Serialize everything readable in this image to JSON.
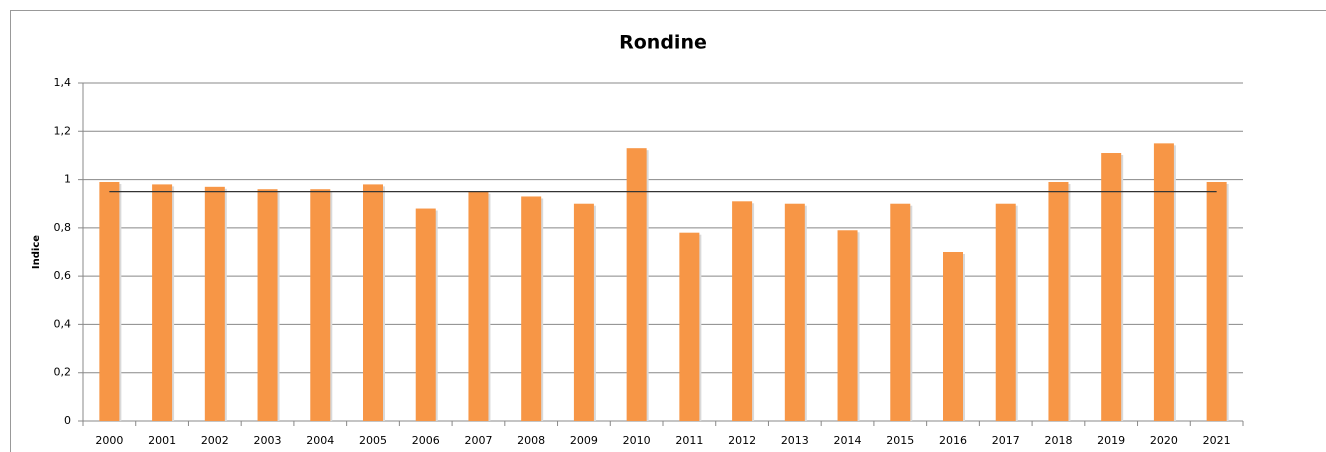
{
  "chart_data": {
    "type": "bar",
    "title": "Rondine",
    "y_label": "Indice",
    "categories": [
      "2000",
      "2001",
      "2002",
      "2003",
      "2004",
      "2005",
      "2006",
      "2007",
      "2008",
      "2009",
      "2010",
      "2011",
      "2012",
      "2013",
      "2014",
      "2015",
      "2016",
      "2017",
      "2018",
      "2019",
      "2020",
      "2021"
    ],
    "values": [
      0.99,
      0.98,
      0.97,
      0.96,
      0.96,
      0.98,
      0.88,
      0.95,
      0.93,
      0.9,
      1.13,
      0.78,
      0.91,
      0.9,
      0.79,
      0.9,
      0.7,
      0.9,
      0.99,
      1.11,
      1.15,
      0.99
    ],
    "color": "#f79646",
    "reference_line": {
      "value": 0.95,
      "color": "#333333"
    },
    "ylim": [
      0,
      1.4
    ],
    "yticks": [
      0,
      {
        "value": 0.2,
        "label": "0,2"
      },
      {
        "value": 0.4,
        "label": "0,4"
      },
      {
        "value": 0.6,
        "label": "0,6"
      },
      {
        "value": 0.8,
        "label": "0,8"
      },
      1,
      {
        "value": 1.2,
        "label": "1,2"
      },
      {
        "value": 1.4,
        "label": "1,4"
      }
    ],
    "grid": true
  }
}
